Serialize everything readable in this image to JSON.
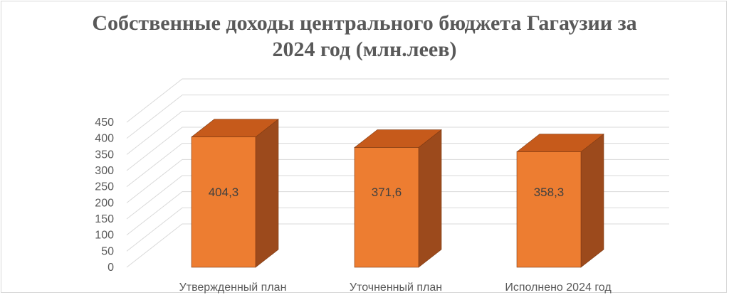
{
  "title_lines": [
    "Собственные доходы центрального бюджета Гагаузии за",
    "2024 год (млн.леев)"
  ],
  "colors": {
    "bar_front": "#ed7d31",
    "bar_top": "#c65a1b",
    "bar_side": "#9c4a1c",
    "bar_outline": "#7f3a12",
    "grid": "#d9d9d9",
    "text": "#595959",
    "label_text": "#404040"
  },
  "chart_data": {
    "type": "bar",
    "variant": "3d-column",
    "title": "Собственные доходы центрального бюджета Гагаузии за 2024 год (млн.леев)",
    "categories": [
      "Утвержденный план",
      "Уточненный план",
      "Исполнено 2024 год"
    ],
    "values": [
      404.3,
      371.6,
      358.3
    ],
    "value_labels": [
      "404,3",
      "371,6",
      "358,3"
    ],
    "y_ticks": [
      0,
      50,
      100,
      150,
      200,
      250,
      300,
      350,
      400,
      450
    ],
    "ylim": [
      0,
      450
    ],
    "grid": true,
    "legend": "none"
  }
}
